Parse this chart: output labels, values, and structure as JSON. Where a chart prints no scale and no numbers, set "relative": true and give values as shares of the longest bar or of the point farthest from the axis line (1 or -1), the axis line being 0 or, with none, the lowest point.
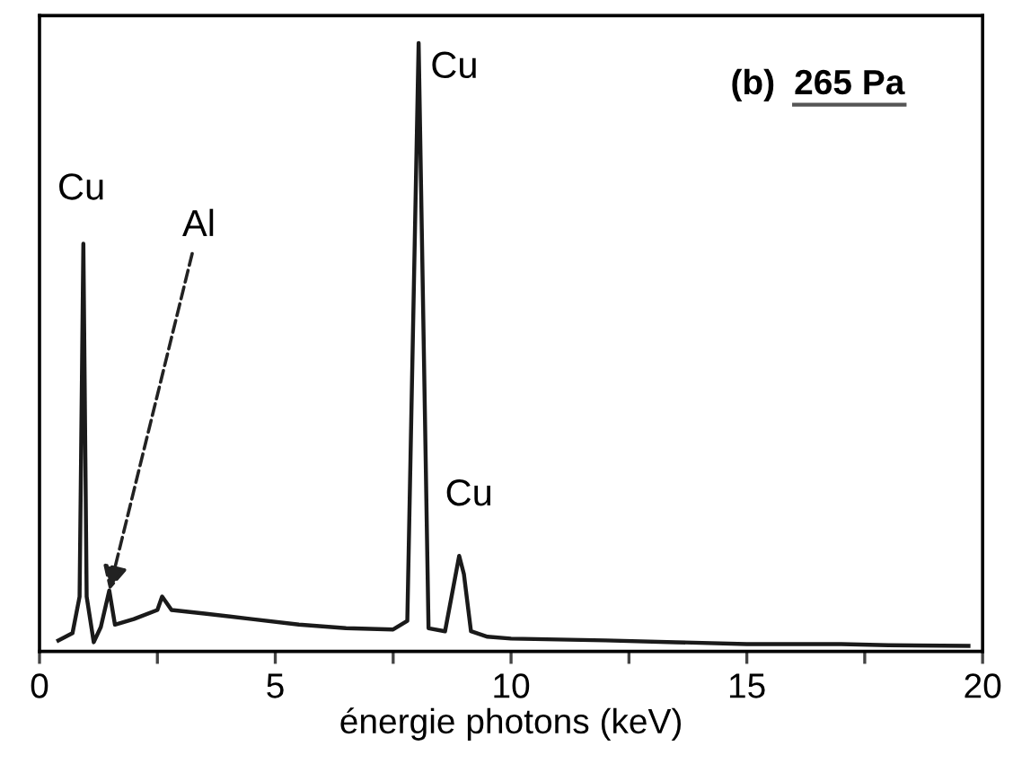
{
  "chart_data": {
    "type": "line",
    "relative": true,
    "xlabel": "énergie photons (keV)",
    "xlim": [
      0,
      20
    ],
    "xticks": [
      0,
      {
        "value": 2.5,
        "label": null
      },
      5,
      {
        "value": 7.5,
        "label": null
      },
      10,
      {
        "value": 12.5,
        "label": null
      },
      15,
      {
        "value": 17.5,
        "label": null
      },
      20
    ],
    "tick_labels": "x",
    "grid": false,
    "legend": false,
    "marker": "none",
    "line_style": "solid",
    "series": [
      {
        "color": "#1a1a1a",
        "x": [
          0.4,
          0.7,
          0.85,
          0.93,
          1.0,
          1.15,
          1.3,
          1.48,
          1.6,
          2.0,
          2.5,
          2.6,
          2.8,
          3.5,
          4.5,
          5.5,
          6.5,
          7.5,
          7.8,
          8.04,
          8.25,
          8.6,
          8.9,
          9.0,
          9.15,
          9.5,
          10,
          12,
          13.5,
          15,
          17,
          18,
          19.7
        ],
        "values": [
          0.018,
          0.03,
          0.09,
          0.67,
          0.09,
          0.015,
          0.04,
          0.1,
          0.044,
          0.053,
          0.068,
          0.09,
          0.068,
          0.062,
          0.053,
          0.044,
          0.038,
          0.036,
          0.05,
          1,
          0.038,
          0.033,
          0.157,
          0.127,
          0.033,
          0.024,
          0.021,
          0.018,
          0.015,
          0.012,
          0.012,
          0.01,
          0.009
        ]
      }
    ],
    "annotations": [
      {
        "text": "Cu",
        "x": 0.93,
        "y": 0.67
      },
      {
        "text": "Cu",
        "x": 8.04,
        "y": 1
      },
      {
        "text": "Cu",
        "x": 8.9,
        "y": 0.157
      },
      {
        "text": "Al",
        "x": 1.48,
        "y": 0.1
      },
      "(b)",
      "265 Pa"
    ]
  }
}
